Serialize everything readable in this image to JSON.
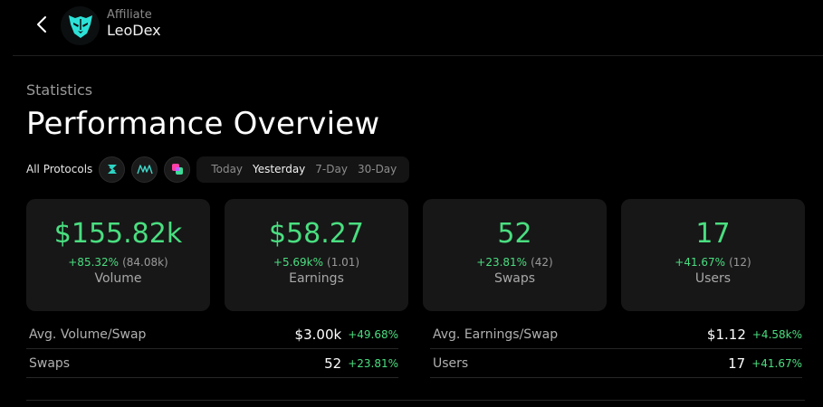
{
  "header": {
    "subtitle": "Affiliate",
    "name": "LeoDex",
    "accent": "#2de1d7"
  },
  "page": {
    "eyebrow": "Statistics",
    "title": "Performance Overview"
  },
  "filters": {
    "all_label": "All Protocols",
    "protocols": [
      {
        "icon": "thorchain-icon",
        "color": "#2ed3c4"
      },
      {
        "icon": "maya-icon",
        "color": "#3fd6c8"
      },
      {
        "icon": "chainflip-icon",
        "color": "#ff3fa4"
      }
    ],
    "periods": [
      "Today",
      "Yesterday",
      "7-Day",
      "30-Day"
    ],
    "active_period": "Yesterday"
  },
  "cards": [
    {
      "value": "$155.82k",
      "change": "+85.32%",
      "previous": "(84.08k)",
      "label": "Volume"
    },
    {
      "value": "$58.27",
      "change": "+5.69k%",
      "previous": "(1.01)",
      "label": "Earnings"
    },
    {
      "value": "52",
      "change": "+23.81%",
      "previous": "(42)",
      "label": "Swaps"
    },
    {
      "value": "17",
      "change": "+41.67%",
      "previous": "(12)",
      "label": "Users"
    }
  ],
  "stats": {
    "left": [
      {
        "label": "Avg. Volume/Swap",
        "value": "$3.00k",
        "change": "+49.68%"
      },
      {
        "label": "Swaps",
        "value": "52",
        "change": "+23.81%"
      }
    ],
    "right": [
      {
        "label": "Avg. Earnings/Swap",
        "value": "$1.12",
        "change": "+4.58k%"
      },
      {
        "label": "Users",
        "value": "17",
        "change": "+41.67%"
      }
    ]
  },
  "colors": {
    "positive": "#4ade80",
    "background": "#000000",
    "card": "#171717"
  }
}
